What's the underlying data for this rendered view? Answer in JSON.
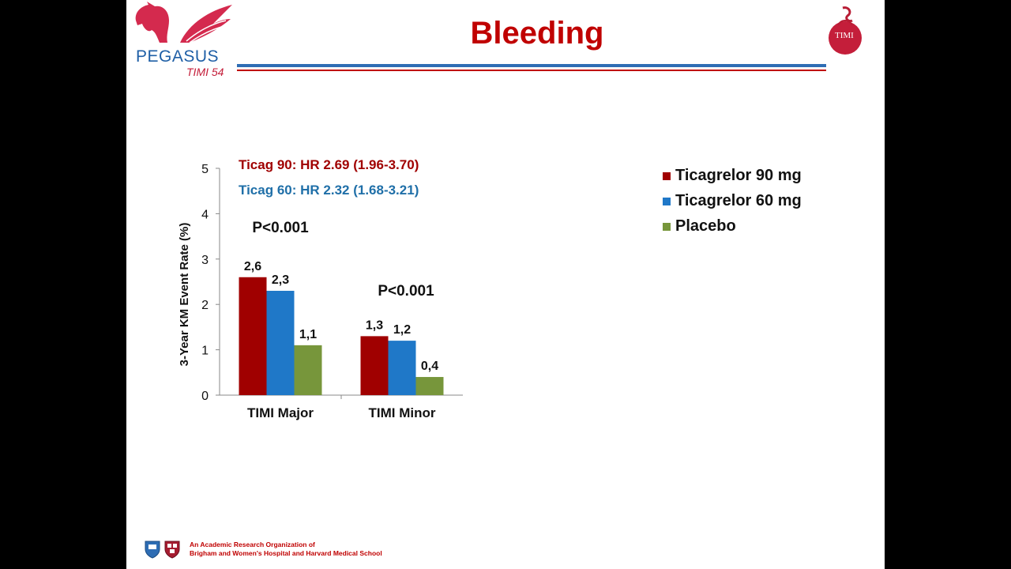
{
  "header": {
    "title": "Bleeding",
    "left_logo": {
      "name": "PEGASUS",
      "subtitle": "TIMI 54",
      "colors": {
        "horse": "#d42a4e",
        "text": "#1f5fa6"
      }
    },
    "right_logo": {
      "text": "TIMI",
      "color": "#c41e3a"
    }
  },
  "chart_data": {
    "type": "bar",
    "categories": [
      "TIMI Major",
      "TIMI Minor"
    ],
    "series": [
      {
        "name": "Ticagrelor 90 mg",
        "values": [
          2.6,
          1.3
        ],
        "labels": [
          "2,6",
          "1,3"
        ],
        "color": "#a00000"
      },
      {
        "name": "Ticagrelor 60 mg",
        "values": [
          2.3,
          1.2
        ],
        "labels": [
          "2,3",
          "1,2"
        ],
        "color": "#1f78c8"
      },
      {
        "name": "Placebo",
        "values": [
          1.1,
          0.4
        ],
        "labels": [
          "1,1",
          "0,4"
        ],
        "color": "#77963b"
      }
    ],
    "ylabel": "3-Year KM Event Rate (%)",
    "ylim": [
      0,
      5
    ],
    "yticks": [
      "0",
      "1",
      "2",
      "3",
      "4",
      "5"
    ],
    "grid": false,
    "legend": "right",
    "annotations": {
      "hr_90": {
        "text": "Ticag 90: HR 2.69 (1.96-3.70)",
        "color": "#a00000"
      },
      "hr_60": {
        "text": "Ticag 60: HR 2.32 (1.68-3.21)",
        "color": "#1f6fa8"
      },
      "p_values": [
        "P<0.001",
        "P<0.001"
      ]
    }
  },
  "footer": {
    "line1": "An Academic Research Organization of",
    "line2": "Brigham and Women's Hospital and Harvard Medical School",
    "icons": [
      "bwh-shield-icon",
      "harvard-shield-icon"
    ]
  }
}
